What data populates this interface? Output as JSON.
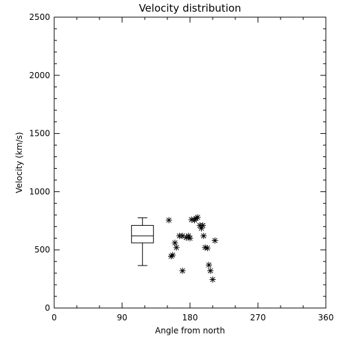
{
  "chart_data": {
    "type": "scatter",
    "title": "Velocity distribution",
    "xlabel": "Angle from north",
    "ylabel": "Velocity (km/s)",
    "xlim": [
      0,
      360
    ],
    "ylim": [
      0,
      2500
    ],
    "x_ticks": [
      "0",
      "90",
      "180",
      "270",
      "360"
    ],
    "y_ticks": [
      "0",
      "500",
      "1000",
      "1500",
      "2000",
      "2500"
    ],
    "grid": false,
    "marker": "asterisk",
    "color": "#000000",
    "boxplot": {
      "x": 117,
      "min": 365,
      "q1": 560,
      "median": 620,
      "q3": 710,
      "max": 775
    },
    "points": [
      {
        "x": 152,
        "y": 755
      },
      {
        "x": 155,
        "y": 445
      },
      {
        "x": 157,
        "y": 455
      },
      {
        "x": 160,
        "y": 560
      },
      {
        "x": 162,
        "y": 520
      },
      {
        "x": 166,
        "y": 620
      },
      {
        "x": 170,
        "y": 620
      },
      {
        "x": 170,
        "y": 320
      },
      {
        "x": 175,
        "y": 605
      },
      {
        "x": 178,
        "y": 620
      },
      {
        "x": 180,
        "y": 600
      },
      {
        "x": 182,
        "y": 760
      },
      {
        "x": 186,
        "y": 755
      },
      {
        "x": 188,
        "y": 770
      },
      {
        "x": 190,
        "y": 780
      },
      {
        "x": 193,
        "y": 710
      },
      {
        "x": 195,
        "y": 685
      },
      {
        "x": 197,
        "y": 710
      },
      {
        "x": 198,
        "y": 620
      },
      {
        "x": 200,
        "y": 520
      },
      {
        "x": 203,
        "y": 515
      },
      {
        "x": 205,
        "y": 370
      },
      {
        "x": 207,
        "y": 320
      },
      {
        "x": 210,
        "y": 245
      },
      {
        "x": 213,
        "y": 580
      }
    ]
  }
}
